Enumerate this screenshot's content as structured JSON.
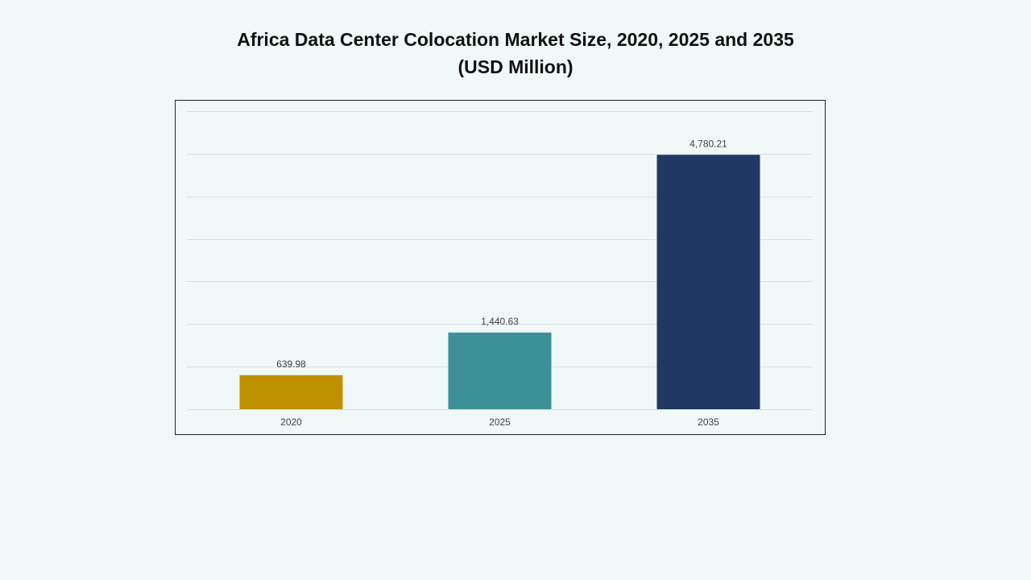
{
  "chart_data": {
    "type": "bar",
    "title": "Africa Data Center Colocation Market Size, 2020, 2025 and 2035",
    "subtitle": "(USD Million)",
    "categories": [
      "2020",
      "2025",
      "2035"
    ],
    "values": [
      639.98,
      1440.63,
      4780.21
    ],
    "value_labels": [
      "639.98",
      "1,440.63",
      "4,780.21"
    ],
    "colors": [
      "#bf9000",
      "#3d9097",
      "#203864"
    ],
    "ylim": [
      0,
      5600
    ],
    "yticks": [
      0,
      800,
      1600,
      2400,
      3200,
      4000,
      4800,
      5600
    ],
    "ytick_labels": false,
    "grid": true
  }
}
